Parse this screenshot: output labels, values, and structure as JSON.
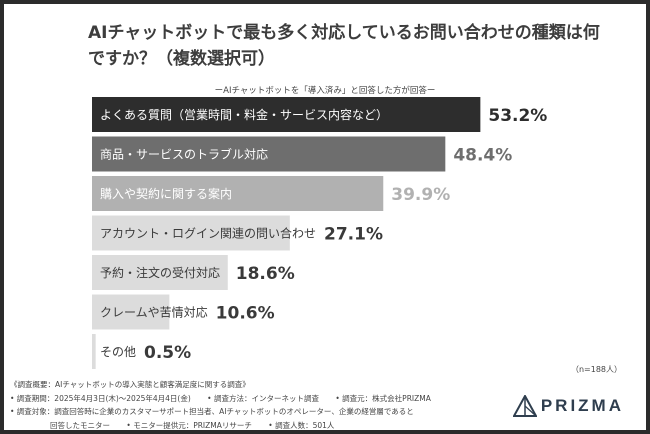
{
  "title": "AIチャットボットで最も多く対応しているお問い合わせの種類は何ですか？（複数選択可）",
  "subtitle": "ーAIチャットボットを「導入済み」と回答した方が回答ー",
  "n_note": "（n=188人）",
  "notes": {
    "heading": "《調査概要：AIチャットボットの導入実態と顧客満足度に関する調査》",
    "period": "• 調査期間：2025年4月3日(木)〜2025年4月4日(金)",
    "method": "• 調査方法：インターネット調査",
    "org": "• 調査元：株式会社PRIZMA",
    "target": "• 調査対象：調査回答時に企業のカスタマーサポート担当者、AIチャットボットのオペレーター、企業の経営層であると",
    "target_cont": "回答したモニター",
    "provider": "• モニター提供元：PRIZMAリサーチ",
    "count": "• 調査人数：501人"
  },
  "logo": {
    "text": "PRIZMA",
    "icon": "prizma-triangle-icon"
  },
  "chart_data": {
    "type": "bar",
    "orientation": "horizontal",
    "unit": "%",
    "xlim": [
      0,
      100
    ],
    "categories": [
      "よくある質問（営業時間・料金・サービス内容など）",
      "商品・サービスのトラブル対応",
      "購入や契約に関する案内",
      "アカウント・ログイン関連の問い合わせ",
      "予約・注文の受付対応",
      "クレームや苦情対応",
      "その他"
    ],
    "values": [
      53.2,
      48.4,
      39.9,
      27.1,
      18.6,
      10.6,
      0.5
    ],
    "value_labels": [
      "53.2%",
      "48.4%",
      "39.9%",
      "27.1%",
      "18.6%",
      "10.6%",
      "0.5%"
    ],
    "colors": [
      "#2d2d2d",
      "#6e6e6e",
      "#b1b1b1",
      "#dcdcdc",
      "#dcdcdc",
      "#dcdcdc",
      "#dcdcdc"
    ],
    "label_colors": [
      "#ffffff",
      "#ffffff",
      "#ffffff",
      "#3a3a3a",
      "#3a3a3a",
      "#3a3a3a",
      "#3a3a3a"
    ],
    "value_colors": [
      "#2d2d2d",
      "#6e6e6e",
      "#b1b1b1",
      "#3a3a3a",
      "#3a3a3a",
      "#3a3a3a",
      "#3a3a3a"
    ]
  }
}
